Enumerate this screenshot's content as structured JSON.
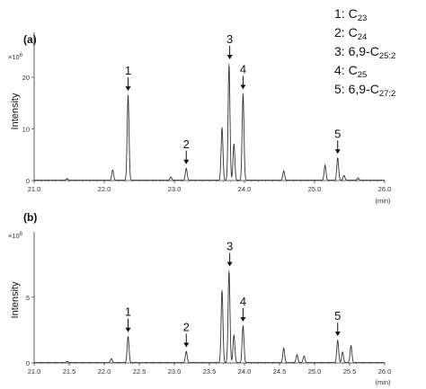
{
  "legend": {
    "items": [
      {
        "num": "1",
        "prefix": "C",
        "sub": "23"
      },
      {
        "num": "2",
        "prefix": "C",
        "sub": "24"
      },
      {
        "num": "3",
        "prefix": "6,9-C",
        "sub": "25:2"
      },
      {
        "num": "4",
        "prefix": "C",
        "sub": "25"
      },
      {
        "num": "5",
        "prefix": "6,9-C",
        "sub": "27:2"
      }
    ]
  },
  "colors": {
    "trace": "#333333",
    "axis": "#333333"
  },
  "chart_data": [
    {
      "type": "line",
      "panel_label": "(a)",
      "ylabel": "Intensity",
      "xlabel": "(min)",
      "y_multiplier_base": "×10",
      "y_multiplier_exp": "6",
      "xlim": [
        21.0,
        26.0
      ],
      "ylim": [
        0,
        28
      ],
      "x_ticks": [
        "21.0",
        "22.0",
        "23.0",
        "24.0",
        "25.0",
        "26.0"
      ],
      "y_ticks": [
        "0",
        "10",
        "20"
      ],
      "y_tick_values": [
        0,
        10,
        20
      ],
      "peaks": [
        {
          "x": 21.47,
          "height": 0.3
        },
        {
          "x": 22.12,
          "height": 2.0
        },
        {
          "x": 22.34,
          "height": 16.5
        },
        {
          "x": 22.95,
          "height": 0.6
        },
        {
          "x": 23.17,
          "height": 2.3
        },
        {
          "x": 23.68,
          "height": 10.2
        },
        {
          "x": 23.78,
          "height": 22.6
        },
        {
          "x": 23.85,
          "height": 7.0
        },
        {
          "x": 23.98,
          "height": 16.8
        },
        {
          "x": 24.56,
          "height": 1.8
        },
        {
          "x": 25.15,
          "height": 2.9
        },
        {
          "x": 25.33,
          "height": 4.3
        },
        {
          "x": 25.42,
          "height": 0.9
        },
        {
          "x": 25.62,
          "height": 0.4
        }
      ],
      "annotations": [
        {
          "label": "1",
          "x": 22.34,
          "y": 16.5
        },
        {
          "label": "2",
          "x": 23.17,
          "y": 2.3
        },
        {
          "label": "3",
          "x": 23.79,
          "y": 22.6
        },
        {
          "label": "4",
          "x": 23.98,
          "y": 16.8
        },
        {
          "label": "5",
          "x": 25.33,
          "y": 4.3
        }
      ]
    },
    {
      "type": "line",
      "panel_label": "(b)",
      "ylabel": "Intensity",
      "xlabel": "(min)",
      "y_multiplier_base": "×10",
      "y_multiplier_exp": "6",
      "xlim": [
        21.0,
        26.0
      ],
      "ylim": [
        0,
        9.7
      ],
      "x_ticks": [
        "21.0",
        "21.5",
        "22.0",
        "22.5",
        "23.0",
        "23.5",
        "24.0",
        "24.5",
        "25.0",
        "25.5",
        "26.0"
      ],
      "y_ticks": [
        "0",
        "5"
      ],
      "y_tick_values": [
        0,
        5
      ],
      "peaks": [
        {
          "x": 21.47,
          "height": 0.1
        },
        {
          "x": 22.1,
          "height": 0.3
        },
        {
          "x": 22.34,
          "height": 2.0
        },
        {
          "x": 23.17,
          "height": 0.85
        },
        {
          "x": 23.68,
          "height": 5.5
        },
        {
          "x": 23.78,
          "height": 7.0
        },
        {
          "x": 23.85,
          "height": 2.1
        },
        {
          "x": 23.98,
          "height": 2.8
        },
        {
          "x": 24.56,
          "height": 1.1
        },
        {
          "x": 24.75,
          "height": 0.6
        },
        {
          "x": 24.85,
          "height": 0.5
        },
        {
          "x": 25.33,
          "height": 1.7
        },
        {
          "x": 25.4,
          "height": 0.8
        },
        {
          "x": 25.52,
          "height": 1.3
        }
      ],
      "annotations": [
        {
          "label": "1",
          "x": 22.34,
          "y": 2.0
        },
        {
          "label": "2",
          "x": 23.17,
          "y": 0.85
        },
        {
          "label": "3",
          "x": 23.79,
          "y": 7.0
        },
        {
          "label": "4",
          "x": 23.98,
          "y": 2.8
        },
        {
          "label": "5",
          "x": 25.33,
          "y": 1.7
        }
      ]
    }
  ]
}
